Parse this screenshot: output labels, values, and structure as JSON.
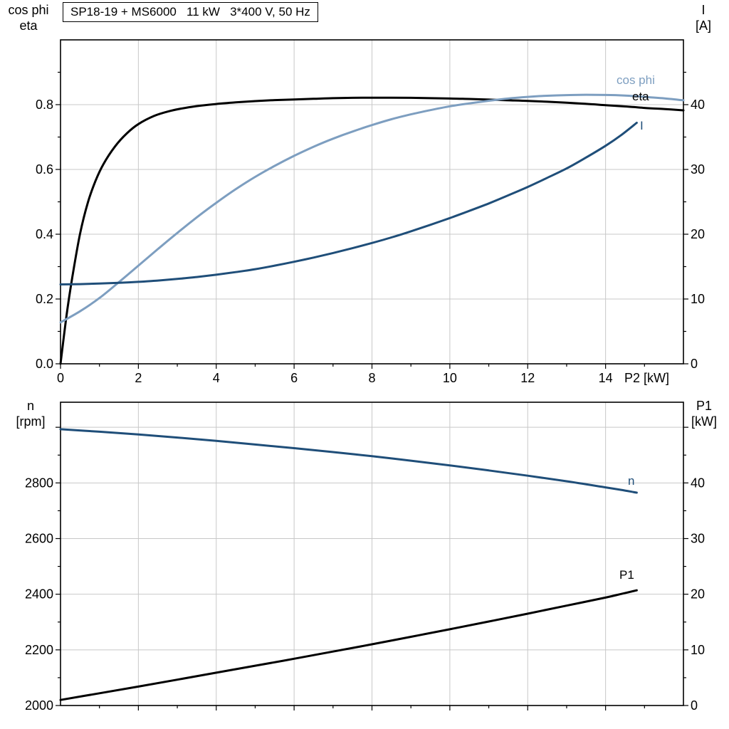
{
  "title": "SP18-19 + MS6000   11 kW   3*400 V, 50 Hz",
  "colors": {
    "eta": "#000000",
    "cos_phi": "#7d9ec0",
    "current": "#1f4e79",
    "speed": "#1f4e79",
    "p1": "#000000",
    "grid": "#c8c8c8",
    "axis": "#000000",
    "background": "#ffffff"
  },
  "axis_corner_labels": {
    "top_left_line1": "cos phi",
    "top_left_line2": "eta",
    "top_right_line1": "I",
    "top_right_line2": "[A]",
    "bottom_left_line1": "n",
    "bottom_left_line2": "[rpm]",
    "bottom_right_line1": "P1",
    "bottom_right_line2": "[kW]",
    "x_axis_label": "P2 [kW]"
  },
  "curve_labels": {
    "cos_phi": "cos phi",
    "eta": "eta",
    "current": "I",
    "speed": "n",
    "p1": "P1"
  },
  "chart_data": [
    {
      "type": "line",
      "title": "SP18-19 + MS6000   11 kW   3*400 V, 50 Hz",
      "x_axis": {
        "label": "P2 [kW]",
        "min": 0,
        "max": 16,
        "tick_values": [
          0,
          2,
          4,
          6,
          8,
          10,
          12,
          14
        ],
        "tick_labels": [
          "0",
          "2",
          "4",
          "6",
          "8",
          "10",
          "12",
          "14"
        ],
        "minor_step": 1,
        "show_labels": true
      },
      "y_left": {
        "label": "cos phi / eta",
        "min": 0,
        "max": 1.0,
        "tick_values": [
          0,
          0.2,
          0.4,
          0.6,
          0.8
        ],
        "tick_labels": [
          "0.0",
          "0.2",
          "0.4",
          "0.6",
          "0.8"
        ],
        "minor_step": 0.1
      },
      "y_right": {
        "label": "I [A]",
        "min": 0,
        "max": 50,
        "tick_values": [
          0,
          10,
          20,
          30,
          40
        ],
        "tick_labels": [
          "0",
          "10",
          "20",
          "30",
          "40"
        ],
        "minor_step": 5
      },
      "grid": true,
      "legend_position": "curve-end-right",
      "series": [
        {
          "name": "eta",
          "axis": "left",
          "color": "eta",
          "points": [
            [
              0,
              0
            ],
            [
              0.15,
              0.145
            ],
            [
              0.3,
              0.265
            ],
            [
              0.5,
              0.4
            ],
            [
              0.7,
              0.497
            ],
            [
              0.9,
              0.565
            ],
            [
              1.1,
              0.616
            ],
            [
              1.4,
              0.671
            ],
            [
              1.7,
              0.711
            ],
            [
              2,
              0.74
            ],
            [
              2.4,
              0.765
            ],
            [
              2.8,
              0.78
            ],
            [
              3.2,
              0.79
            ],
            [
              3.6,
              0.797
            ],
            [
              4,
              0.802
            ],
            [
              4.5,
              0.807
            ],
            [
              5,
              0.811
            ],
            [
              5.5,
              0.814
            ],
            [
              6,
              0.816
            ],
            [
              6.5,
              0.818
            ],
            [
              7,
              0.82
            ],
            [
              7.5,
              0.821
            ],
            [
              8,
              0.8215
            ],
            [
              8.5,
              0.8215
            ],
            [
              9,
              0.821
            ],
            [
              9.5,
              0.82
            ],
            [
              10,
              0.819
            ],
            [
              10.5,
              0.8175
            ],
            [
              11,
              0.8155
            ],
            [
              11.5,
              0.8135
            ],
            [
              12,
              0.8115
            ],
            [
              12.5,
              0.809
            ],
            [
              13,
              0.806
            ],
            [
              13.5,
              0.8025
            ],
            [
              14,
              0.7985
            ],
            [
              14.5,
              0.7945
            ],
            [
              15,
              0.79
            ],
            [
              15.5,
              0.7865
            ],
            [
              16,
              0.7825
            ]
          ]
        },
        {
          "name": "cos phi",
          "axis": "left",
          "color": "cos_phi",
          "points": [
            [
              0,
              0.128
            ],
            [
              0.5,
              0.162
            ],
            [
              1,
              0.203
            ],
            [
              1.5,
              0.252
            ],
            [
              2,
              0.303
            ],
            [
              2.5,
              0.354
            ],
            [
              3,
              0.404
            ],
            [
              3.5,
              0.452
            ],
            [
              4,
              0.497
            ],
            [
              4.5,
              0.539
            ],
            [
              5,
              0.577
            ],
            [
              5.5,
              0.611
            ],
            [
              6,
              0.642
            ],
            [
              6.5,
              0.67
            ],
            [
              7,
              0.695
            ],
            [
              7.5,
              0.717
            ],
            [
              8,
              0.737
            ],
            [
              8.5,
              0.755
            ],
            [
              9,
              0.77
            ],
            [
              9.5,
              0.783
            ],
            [
              10,
              0.795
            ],
            [
              10.5,
              0.804
            ],
            [
              11,
              0.812
            ],
            [
              11.5,
              0.819
            ],
            [
              12,
              0.824
            ],
            [
              12.5,
              0.8275
            ],
            [
              13,
              0.8295
            ],
            [
              13.5,
              0.8305
            ],
            [
              14,
              0.83
            ],
            [
              14.5,
              0.828
            ],
            [
              15,
              0.824
            ],
            [
              15.5,
              0.8195
            ],
            [
              16,
              0.8135
            ]
          ]
        },
        {
          "name": "I",
          "axis": "right",
          "color": "current",
          "points": [
            [
              0,
              12.25
            ],
            [
              0.5,
              12.3
            ],
            [
              1,
              12.4
            ],
            [
              1.5,
              12.5
            ],
            [
              2,
              12.65
            ],
            [
              2.5,
              12.85
            ],
            [
              3,
              13.1
            ],
            [
              3.5,
              13.4
            ],
            [
              4,
              13.75
            ],
            [
              4.5,
              14.15
            ],
            [
              5,
              14.6
            ],
            [
              5.5,
              15.15
            ],
            [
              6,
              15.75
            ],
            [
              6.5,
              16.4
            ],
            [
              7,
              17.1
            ],
            [
              7.5,
              17.85
            ],
            [
              8,
              18.65
            ],
            [
              8.5,
              19.5
            ],
            [
              9,
              20.45
            ],
            [
              9.5,
              21.45
            ],
            [
              10,
              22.5
            ],
            [
              10.5,
              23.6
            ],
            [
              11,
              24.75
            ],
            [
              11.5,
              26
            ],
            [
              12,
              27.3
            ],
            [
              12.5,
              28.7
            ],
            [
              13,
              30.15
            ],
            [
              13.5,
              31.85
            ],
            [
              14,
              33.65
            ],
            [
              14.4,
              35.3
            ],
            [
              14.8,
              37.2
            ]
          ]
        }
      ]
    },
    {
      "type": "line",
      "x_axis": {
        "label": "",
        "min": 0,
        "max": 16,
        "tick_values": [
          2,
          4,
          6,
          8,
          10,
          12,
          14
        ],
        "tick_labels": [
          "",
          "",
          "",
          "",
          "",
          "",
          ""
        ],
        "minor_step": 1,
        "show_labels": false
      },
      "y_left": {
        "label": "n [rpm]",
        "min": 2000,
        "max": 3090,
        "tick_values": [
          2000,
          2200,
          2400,
          2600,
          2800,
          3000
        ],
        "tick_labels": [
          "2000",
          "2200",
          "2400",
          "2600",
          "2800",
          ""
        ],
        "minor_step": 100
      },
      "y_right": {
        "label": "P1 [kW]",
        "min": 0,
        "max": 54.5,
        "tick_values": [
          0,
          10,
          20,
          30,
          40,
          50
        ],
        "tick_labels": [
          "0",
          "10",
          "20",
          "30",
          "40",
          ""
        ],
        "minor_step": 5
      },
      "grid": true,
      "legend_position": "curve-end-right",
      "series": [
        {
          "name": "n",
          "axis": "left",
          "color": "speed",
          "points": [
            [
              0,
              2993
            ],
            [
              1,
              2984
            ],
            [
              2,
              2974
            ],
            [
              3,
              2963
            ],
            [
              4,
              2951
            ],
            [
              5,
              2938
            ],
            [
              6,
              2925
            ],
            [
              7,
              2911
            ],
            [
              8,
              2896
            ],
            [
              9,
              2880
            ],
            [
              10,
              2863
            ],
            [
              11,
              2845
            ],
            [
              12,
              2826
            ],
            [
              13,
              2806
            ],
            [
              14,
              2784
            ],
            [
              14.4,
              2775
            ],
            [
              14.8,
              2765
            ]
          ]
        },
        {
          "name": "P1",
          "axis": "right",
          "color": "p1",
          "points": [
            [
              0,
              1
            ],
            [
              1,
              2.2
            ],
            [
              2,
              3.4
            ],
            [
              3,
              4.65
            ],
            [
              4,
              5.9
            ],
            [
              5,
              7.15
            ],
            [
              6,
              8.4
            ],
            [
              7,
              9.7
            ],
            [
              8,
              11
            ],
            [
              9,
              12.35
            ],
            [
              10,
              13.7
            ],
            [
              11,
              15.1
            ],
            [
              12,
              16.5
            ],
            [
              13,
              17.95
            ],
            [
              14,
              19.4
            ],
            [
              14.4,
              20.05
            ],
            [
              14.8,
              20.7
            ]
          ]
        }
      ]
    }
  ]
}
